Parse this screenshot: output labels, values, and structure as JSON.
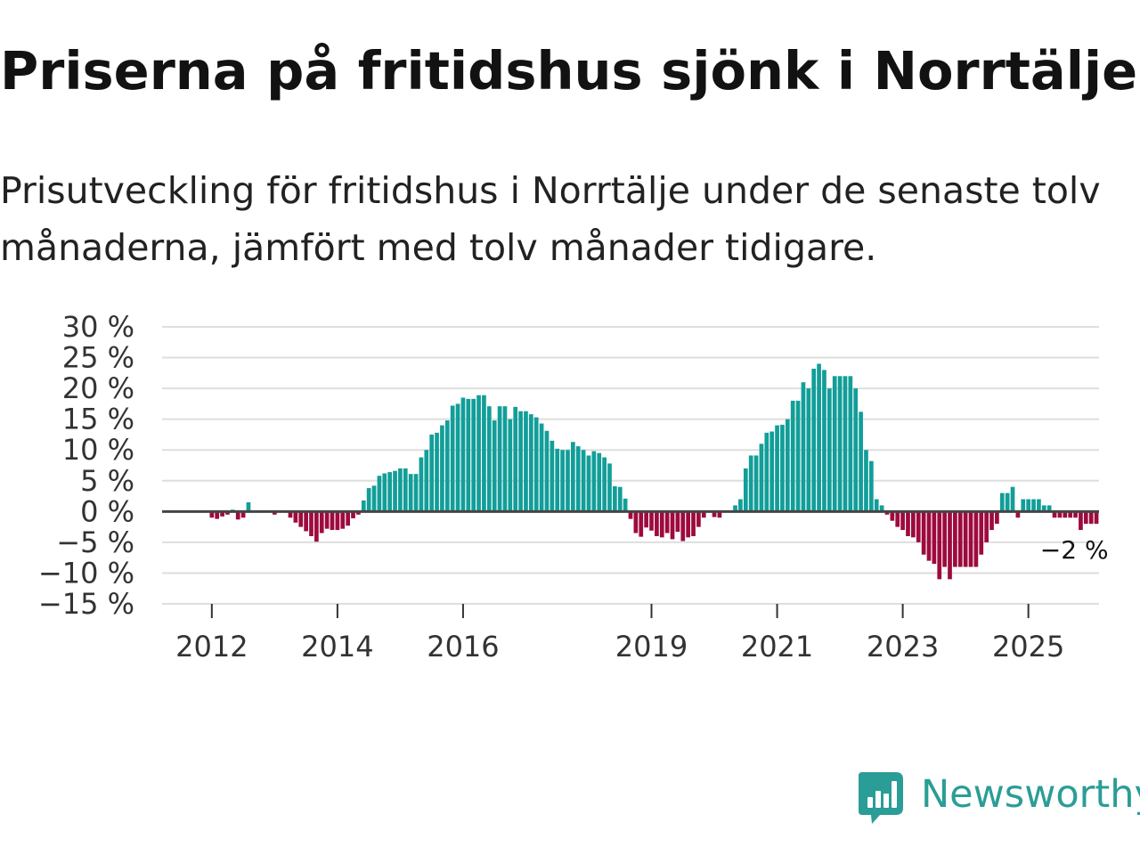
{
  "title": "Priserna på fritidshus sjönk i Norrtälje",
  "subtitle": "Prisutveckling för fritidshus i Norrtälje under de senaste tolv månaderna, jämfört med tolv månader tidigare.",
  "brand": {
    "name": "Newsworthy",
    "icon": "newsworthy-logo-icon",
    "color": "#2a9d96"
  },
  "colors": {
    "positive": "#129e99",
    "negative": "#9e0a3e",
    "grid": "#dedede",
    "zero_line": "#444444"
  },
  "chart_data": {
    "type": "bar",
    "title": "Priserna på fritidshus sjönk i Norrtälje",
    "subtitle": "Prisutveckling för fritidshus i Norrtälje under de senaste tolv månaderna, jämfört med tolv månader tidigare.",
    "xlabel": "",
    "ylabel": "",
    "ylim": [
      -15,
      30
    ],
    "grid": true,
    "legend": "none",
    "frequency": "monthly",
    "start": "2011-04",
    "series": [
      {
        "name": "Prisutveckling (%)",
        "values": [
          null,
          null,
          null,
          null,
          null,
          null,
          null,
          null,
          null,
          -1,
          -1.2,
          -0.8,
          -0.5,
          0.3,
          -1.3,
          -1,
          1.5,
          null,
          null,
          null,
          null,
          -0.5,
          null,
          null,
          -1,
          -1.8,
          -2.5,
          -3.2,
          -4,
          -4.9,
          -3.5,
          -2.8,
          -3,
          -3,
          -2.8,
          -2.3,
          -1.1,
          -0.5,
          1.8,
          3.8,
          4.2,
          5.8,
          6.2,
          6.4,
          6.6,
          7,
          7,
          6.1,
          6.1,
          8.8,
          10,
          12.5,
          12.8,
          14,
          14.8,
          17.2,
          17.5,
          18.5,
          18.3,
          18.3,
          18.9,
          18.9,
          17.1,
          14.8,
          17.1,
          17.1,
          15,
          17,
          16.3,
          16.3,
          15.8,
          15.3,
          14.3,
          13.1,
          11.5,
          10.2,
          10,
          10,
          11.3,
          10.6,
          10,
          9.1,
          9.8,
          9.5,
          8.8,
          7.8,
          4.1,
          4,
          2.1,
          -1.2,
          -3.5,
          -4.1,
          -2.6,
          -3.1,
          -4,
          -4.2,
          -3.5,
          -4.5,
          -3.3,
          -4.8,
          -4.2,
          -4,
          -2.5,
          -1,
          null,
          -0.9,
          -1,
          null,
          null,
          1,
          2,
          7,
          9.1,
          9.1,
          11,
          12.8,
          13,
          14,
          14.1,
          15,
          18,
          18,
          21,
          20,
          23.2,
          24,
          23,
          20,
          22,
          22,
          22,
          22,
          20,
          16.2,
          10,
          8.2,
          2,
          1,
          -0.5,
          -1.5,
          -2.5,
          -3,
          -4,
          -4.2,
          -5,
          -7,
          -8,
          -8.5,
          -11,
          -9,
          -11,
          -9,
          -9,
          -9,
          -9,
          -9,
          -7,
          -5,
          -3,
          -2,
          3,
          3,
          4,
          -1,
          2,
          2,
          2,
          2,
          1,
          1,
          -1,
          -1,
          -1,
          -1,
          -1,
          -3,
          -2,
          -2,
          -2
        ]
      }
    ],
    "x_ticks": [
      {
        "label": "2012",
        "index": 9
      },
      {
        "label": "2014",
        "index": 33
      },
      {
        "label": "2016",
        "index": 57
      },
      {
        "label": "2019",
        "index": 93
      },
      {
        "label": "2021",
        "index": 117
      },
      {
        "label": "2023",
        "index": 141
      },
      {
        "label": "2025",
        "index": 165
      }
    ],
    "y_ticks": [
      {
        "value": 30,
        "label": "30 %"
      },
      {
        "value": 25,
        "label": "25 %"
      },
      {
        "value": 20,
        "label": "20 %"
      },
      {
        "value": 15,
        "label": "15 %"
      },
      {
        "value": 10,
        "label": "10 %"
      },
      {
        "value": 5,
        "label": "5 %"
      },
      {
        "value": 0,
        "label": "0 %"
      },
      {
        "value": -5,
        "label": "−5 %"
      },
      {
        "value": -10,
        "label": "−10 %"
      },
      {
        "value": -15,
        "label": "−15 %"
      }
    ],
    "annotations": [
      {
        "text": "−2 %",
        "index": 174,
        "value": -2
      }
    ]
  }
}
